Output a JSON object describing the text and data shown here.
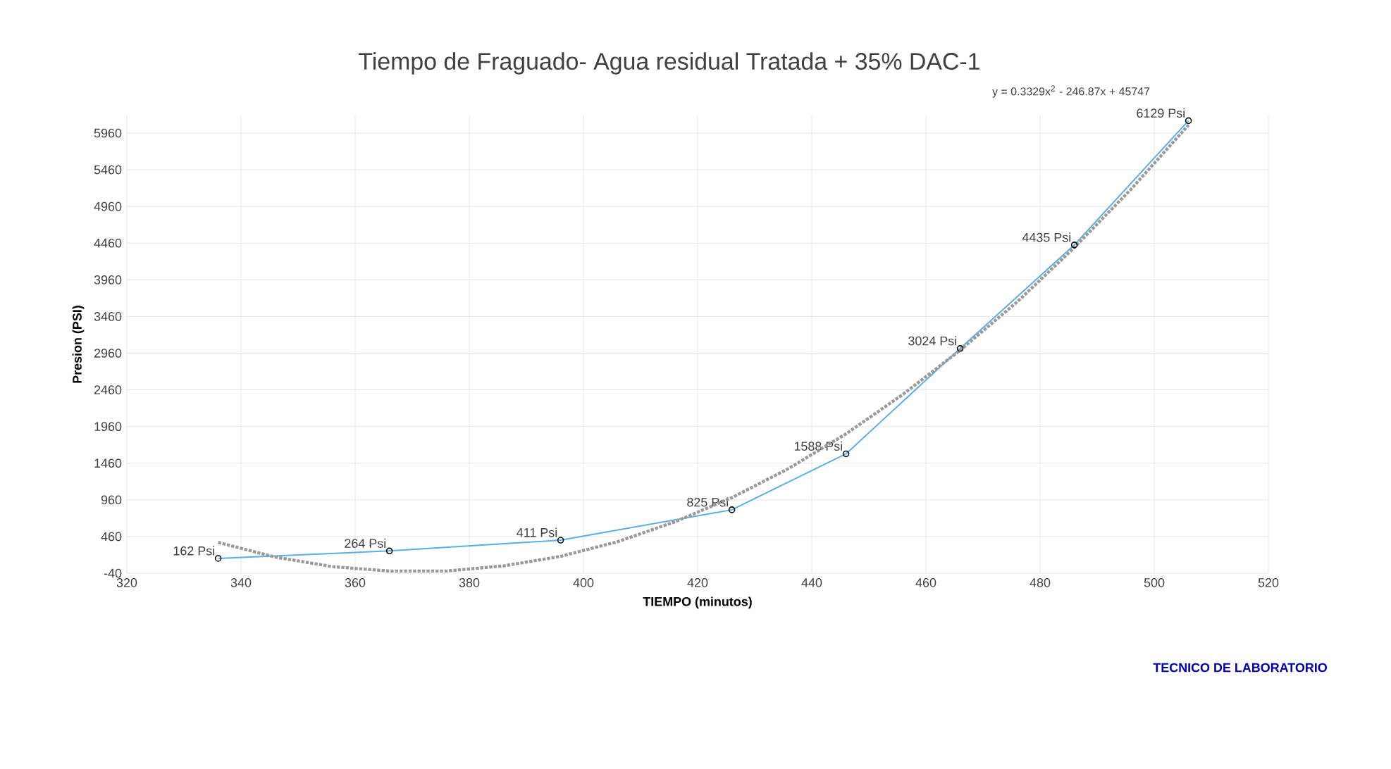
{
  "chart_data": {
    "type": "line",
    "title": "Tiempo de Fraguado- Agua residual Tratada + 35% DAC-1",
    "xlabel": "TIEMPO (minutos)",
    "ylabel": "Presion (PSI)",
    "x": [
      336,
      366,
      396,
      426,
      446,
      466,
      486,
      506
    ],
    "series": [
      {
        "color": "#5aafe0",
        "marker": "circle",
        "line_style": "solid",
        "values": [
          162,
          264,
          411,
          825,
          1588,
          3024,
          4435,
          6129
        ],
        "value_labels": [
          "162 Psi",
          "264 Psi",
          "411 Psi",
          "825 Psi",
          "1588 Psi",
          "3024 Psi",
          "4435 Psi",
          "6129 Psi"
        ]
      },
      {
        "color": "#9a9a9a",
        "marker": "none",
        "line_style": "dotted",
        "x": [
          336,
          346,
          356,
          366,
          376,
          386,
          396,
          406,
          416,
          426,
          436,
          446,
          456,
          466,
          476,
          486,
          496,
          506
        ],
        "values": [
          380,
          180,
          50,
          -10,
          -10,
          60,
          190,
          390,
          660,
          990,
          1390,
          1860,
          2400,
          3000,
          3660,
          4400,
          5200,
          6070
        ]
      }
    ],
    "xlim": [
      320,
      520
    ],
    "xticks": [
      320,
      340,
      360,
      380,
      400,
      420,
      440,
      460,
      480,
      500,
      520
    ],
    "ylim": [
      -40,
      6200
    ],
    "yticks": [
      -40,
      460,
      960,
      1460,
      1960,
      2460,
      2960,
      3460,
      3960,
      4460,
      4960,
      5460,
      5960
    ],
    "grid": true,
    "annotations": [
      "y = 0.3329x$^{2}$ - 246.87x + 45747",
      "TECNICO DE LABORATORIO"
    ]
  }
}
